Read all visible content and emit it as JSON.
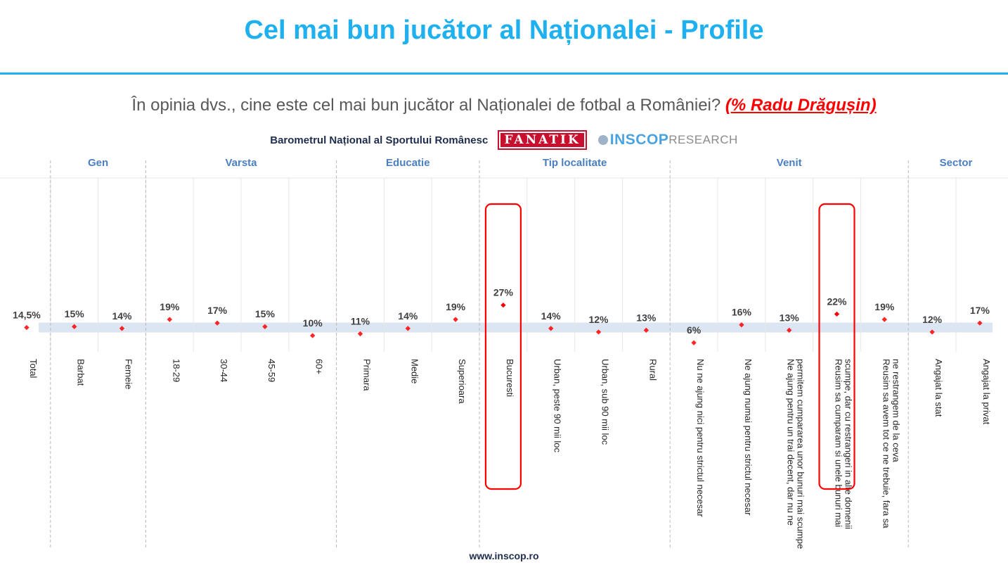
{
  "header": {
    "title": "Cel mai bun jucător al Naționalei - Profile",
    "question": "În opinia dvs., cine este cel mai bun jucător al Naționalei de fotbal a României?",
    "question_highlight": "(% Radu Drăgușin)",
    "barometer_label": "Barometrul Național al Sportului Românesc",
    "fanatik_logo": "FANATIK",
    "inscop_logo": "INSCOP",
    "inscop_logo_suffix": "RESEARCH"
  },
  "footer": {
    "url": "www.inscop.ro"
  },
  "colors": {
    "title": "#1fb1ef",
    "group_label": "#4a7fc1",
    "point": "#ff0000",
    "band": "#dce6f2",
    "highlight": "#ff0000"
  },
  "chart_data": {
    "type": "scatter",
    "unit": "%",
    "groups": [
      {
        "name": "",
        "categories": [
          "Total"
        ],
        "values": [
          14.5
        ],
        "labels": [
          "14,5%"
        ]
      },
      {
        "name": "Gen",
        "categories": [
          "Barbat",
          "Femeie"
        ],
        "values": [
          15,
          14
        ],
        "labels": [
          "15%",
          "14%"
        ]
      },
      {
        "name": "Varsta",
        "categories": [
          "18-29",
          "30-44",
          "45-59",
          "60+"
        ],
        "values": [
          19,
          17,
          15,
          10
        ],
        "labels": [
          "19%",
          "17%",
          "15%",
          "10%"
        ]
      },
      {
        "name": "Educatie",
        "categories": [
          "Primara",
          "Medie",
          "Superioara"
        ],
        "values": [
          11,
          14,
          19
        ],
        "labels": [
          "11%",
          "14%",
          "19%"
        ]
      },
      {
        "name": "Tip localitate",
        "categories": [
          "Bucuresti",
          "Urban, peste 90 mii loc",
          "Urban, sub 90 mii loc",
          "Rural"
        ],
        "values": [
          27,
          14,
          12,
          13
        ],
        "labels": [
          "27%",
          "14%",
          "12%",
          "13%"
        ]
      },
      {
        "name": "Venit",
        "categories": [
          "Nu ne ajung nici pentru strictul necesar",
          "Ne ajung numai pentru strictul necesar",
          "Ne ajung pentru un trai decent, dar nu ne permitem cumpararea unor bunuri mai scumpe",
          "Reusim sa cumparam si unele bunuri mai scumpe, dar cu restrangeri in alte domenii",
          "Reusim sa avem tot ce ne trebuie, fara sa ne restrangem de la ceva"
        ],
        "values": [
          6,
          16,
          13,
          22,
          19
        ],
        "labels": [
          "6%",
          "16%",
          "13%",
          "22%",
          "19%"
        ]
      },
      {
        "name": "Sector",
        "categories": [
          "Angajat la stat",
          "Angajat la privat"
        ],
        "values": [
          12,
          17
        ],
        "labels": [
          "12%",
          "17%"
        ]
      }
    ],
    "reference_band": 14.5,
    "highlighted_categories": [
      "Bucuresti",
      "Reusim sa cumparam si unele bunuri mai scumpe, dar cu restrangeri in alte domenii"
    ]
  }
}
